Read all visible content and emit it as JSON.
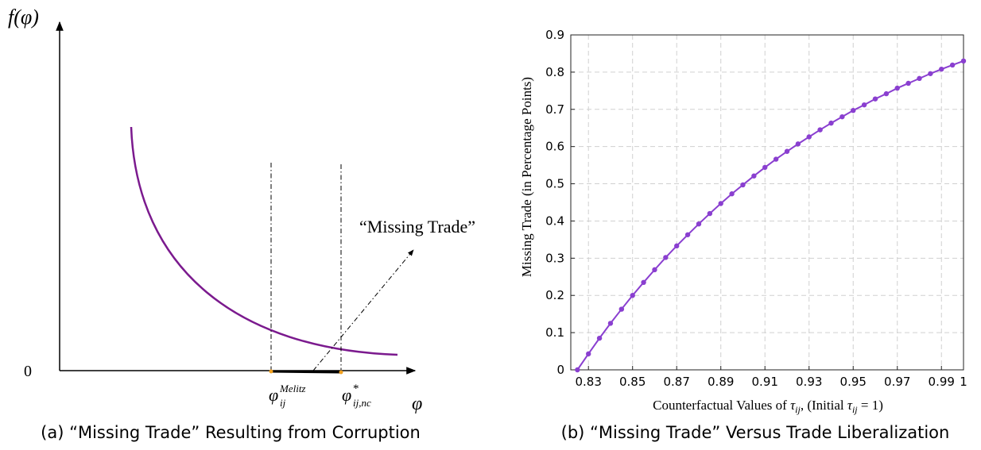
{
  "panel_a": {
    "y_label": {
      "sym": "f",
      "arg": "(φ)"
    },
    "origin": "0",
    "x_label": "φ",
    "annotation": "“Missing Trade”",
    "cutoff_1": {
      "sym": "φ",
      "sub": "ij",
      "sup": "Melitz"
    },
    "cutoff_2": {
      "sym": "φ",
      "sub": "ij,nc",
      "sup": "*"
    }
  },
  "captions": [
    "(a) “Missing Trade” Resulting from Corruption",
    "(b) “Missing Trade” Versus Trade Liberalization"
  ],
  "chart_data": {
    "type": "line",
    "y_label": "Missing Trade (in Percentage Points)",
    "x_label": {
      "pre": "Counterfactual Values of ",
      "sym": "τ",
      "sub": "ij",
      "mid": ", (Initial ",
      "sym2": "τ",
      "sub2": "ij",
      "post": " = 1)"
    },
    "x": [
      0.825,
      0.83,
      0.835,
      0.84,
      0.845,
      0.85,
      0.855,
      0.86,
      0.865,
      0.87,
      0.875,
      0.88,
      0.885,
      0.89,
      0.895,
      0.9,
      0.905,
      0.91,
      0.915,
      0.92,
      0.925,
      0.93,
      0.935,
      0.94,
      0.945,
      0.95,
      0.955,
      0.96,
      0.965,
      0.97,
      0.975,
      0.98,
      0.985,
      0.99,
      0.995,
      1.0
    ],
    "series": [
      {
        "color": "#8a3fd0",
        "values": [
          0,
          0.043,
          0.085,
          0.125,
          0.163,
          0.2,
          0.235,
          0.269,
          0.302,
          0.333,
          0.363,
          0.392,
          0.42,
          0.447,
          0.473,
          0.497,
          0.521,
          0.544,
          0.566,
          0.587,
          0.607,
          0.626,
          0.645,
          0.663,
          0.68,
          0.697,
          0.712,
          0.728,
          0.742,
          0.757,
          0.77,
          0.783,
          0.796,
          0.808,
          0.819,
          0.83
        ]
      }
    ],
    "xlim": [
      0.822,
      1.0
    ],
    "xticks": [
      0.83,
      0.85,
      0.87,
      0.89,
      0.91,
      0.93,
      0.95,
      0.97,
      0.99,
      1
    ],
    "ylim": [
      0,
      0.9
    ],
    "yticks": [
      0,
      0.1,
      0.2,
      0.3,
      0.4,
      0.5,
      0.6,
      0.7,
      0.8,
      0.9
    ],
    "grid": true
  }
}
